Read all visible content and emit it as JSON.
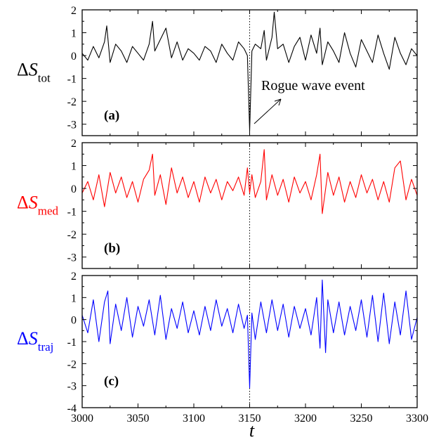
{
  "chart_data": [
    {
      "type": "line",
      "panel_label": "(a)",
      "ylabel": {
        "symbol": "ΔS",
        "sub": "tot"
      },
      "color": "#000000",
      "xlim": [
        3000,
        3300
      ],
      "ylim": [
        -3.5,
        2
      ],
      "yticks": [
        "2",
        "1",
        "0",
        "-1",
        "-2",
        "-3"
      ],
      "annotation": "Rogue wave event",
      "series": [
        {
          "x": [
            3000,
            3005,
            3010,
            3015,
            3020,
            3022,
            3025,
            3030,
            3035,
            3040,
            3045,
            3050,
            3055,
            3060,
            3063,
            3065,
            3070,
            3075,
            3080,
            3085,
            3090,
            3095,
            3100,
            3105,
            3110,
            3115,
            3120,
            3125,
            3130,
            3135,
            3140,
            3145,
            3148,
            3150,
            3152,
            3155,
            3160,
            3163,
            3165,
            3170,
            3172,
            3175,
            3180,
            3185,
            3190,
            3195,
            3200,
            3205,
            3210,
            3213,
            3215,
            3220,
            3225,
            3230,
            3235,
            3240,
            3245,
            3250,
            3255,
            3260,
            3265,
            3270,
            3275,
            3280,
            3285,
            3290,
            3295,
            3300
          ],
          "y": [
            0.1,
            -0.2,
            0.4,
            -0.1,
            0.6,
            1.3,
            -0.3,
            0.5,
            0.2,
            -0.3,
            0.4,
            0.1,
            -0.2,
            0.5,
            1.5,
            0.2,
            0.7,
            1.2,
            -0.1,
            0.6,
            -0.2,
            0.3,
            0.1,
            -0.2,
            0.4,
            0.2,
            -0.3,
            0.5,
            0.1,
            -0.2,
            0.6,
            0.3,
            0.0,
            -3.3,
            0.2,
            0.5,
            0.3,
            1.1,
            -0.2,
            0.8,
            1.9,
            0.3,
            0.5,
            -0.3,
            0.4,
            0.8,
            -0.2,
            0.9,
            0.1,
            1.2,
            -0.4,
            0.6,
            0.2,
            -0.3,
            1.0,
            0.1,
            -0.5,
            0.7,
            0.2,
            -0.3,
            0.9,
            0.1,
            -0.6,
            0.8,
            0.1,
            -0.4,
            0.3,
            0.0
          ]
        }
      ]
    },
    {
      "type": "line",
      "panel_label": "(b)",
      "ylabel": {
        "symbol": "ΔS",
        "sub": "med"
      },
      "color": "#ff0000",
      "xlim": [
        3000,
        3300
      ],
      "ylim": [
        -3.5,
        2
      ],
      "yticks": [
        "2",
        "1",
        "0",
        "-1",
        "-2",
        "-3"
      ],
      "series": [
        {
          "x": [
            3000,
            3005,
            3010,
            3015,
            3020,
            3025,
            3030,
            3035,
            3040,
            3045,
            3050,
            3055,
            3060,
            3063,
            3065,
            3070,
            3075,
            3080,
            3085,
            3090,
            3095,
            3100,
            3105,
            3110,
            3115,
            3120,
            3125,
            3130,
            3135,
            3140,
            3145,
            3148,
            3150,
            3152,
            3155,
            3160,
            3163,
            3165,
            3170,
            3175,
            3180,
            3185,
            3190,
            3195,
            3200,
            3205,
            3210,
            3213,
            3215,
            3220,
            3225,
            3230,
            3235,
            3240,
            3245,
            3250,
            3255,
            3260,
            3265,
            3270,
            3275,
            3280,
            3285,
            3290,
            3295,
            3300
          ],
          "y": [
            -0.2,
            0.3,
            -0.5,
            0.6,
            -0.8,
            0.7,
            -0.2,
            0.5,
            -0.4,
            0.3,
            -0.6,
            0.4,
            0.8,
            1.5,
            -0.3,
            0.6,
            -0.7,
            0.9,
            -0.2,
            0.5,
            -0.4,
            0.3,
            -0.6,
            0.5,
            -0.2,
            0.4,
            -0.5,
            0.3,
            -0.1,
            0.5,
            -0.3,
            0.9,
            -0.2,
            0.6,
            -0.4,
            0.3,
            1.7,
            -0.5,
            0.6,
            -0.3,
            0.4,
            -0.6,
            0.5,
            -0.2,
            0.3,
            -0.5,
            0.6,
            1.5,
            -1.1,
            0.7,
            -0.3,
            0.5,
            -0.6,
            0.3,
            -0.4,
            0.6,
            -0.2,
            0.4,
            -0.5,
            0.3,
            -0.6,
            0.9,
            1.2,
            -0.5,
            0.4,
            -0.3
          ]
        }
      ]
    },
    {
      "type": "line",
      "panel_label": "(c)",
      "ylabel": {
        "symbol": "ΔS",
        "sub": "traj"
      },
      "color": "#0000ff",
      "xlim": [
        3000,
        3300
      ],
      "ylim": [
        -4,
        2
      ],
      "yticks": [
        "2",
        "1",
        "0",
        "-1",
        "-2",
        "-3",
        "-4"
      ],
      "xticks": [
        "3000",
        "3050",
        "3100",
        "3150",
        "3200",
        "3250",
        "3300"
      ],
      "xlabel": "t",
      "series": [
        {
          "x": [
            3000,
            3005,
            3010,
            3015,
            3020,
            3023,
            3025,
            3030,
            3035,
            3040,
            3045,
            3050,
            3055,
            3060,
            3065,
            3070,
            3075,
            3080,
            3085,
            3090,
            3095,
            3100,
            3105,
            3110,
            3115,
            3120,
            3125,
            3130,
            3135,
            3140,
            3145,
            3148,
            3150,
            3152,
            3155,
            3160,
            3165,
            3170,
            3175,
            3180,
            3185,
            3190,
            3195,
            3200,
            3205,
            3210,
            3213,
            3215,
            3218,
            3220,
            3225,
            3230,
            3235,
            3240,
            3245,
            3250,
            3255,
            3260,
            3265,
            3270,
            3275,
            3280,
            3285,
            3290,
            3295,
            3300
          ],
          "y": [
            0.2,
            -0.6,
            0.9,
            -1.0,
            0.8,
            1.3,
            -1.1,
            0.7,
            -0.5,
            1.0,
            -0.8,
            0.6,
            -0.3,
            0.9,
            -0.7,
            1.1,
            -0.9,
            0.5,
            -0.4,
            0.8,
            -0.6,
            0.4,
            -0.7,
            0.6,
            -0.5,
            0.9,
            -0.3,
            0.5,
            -0.6,
            0.7,
            -0.4,
            0.2,
            -3.1,
            0.3,
            -0.9,
            0.8,
            -0.6,
            0.9,
            -0.5,
            0.7,
            -0.8,
            0.6,
            -0.4,
            0.5,
            -0.7,
            1.0,
            -1.3,
            1.8,
            -1.5,
            0.9,
            -0.6,
            0.8,
            -0.7,
            0.6,
            -0.5,
            0.9,
            -0.8,
            1.1,
            -1.0,
            1.2,
            -1.1,
            0.8,
            -0.7,
            1.3,
            -0.9,
            0.1
          ]
        }
      ]
    }
  ]
}
